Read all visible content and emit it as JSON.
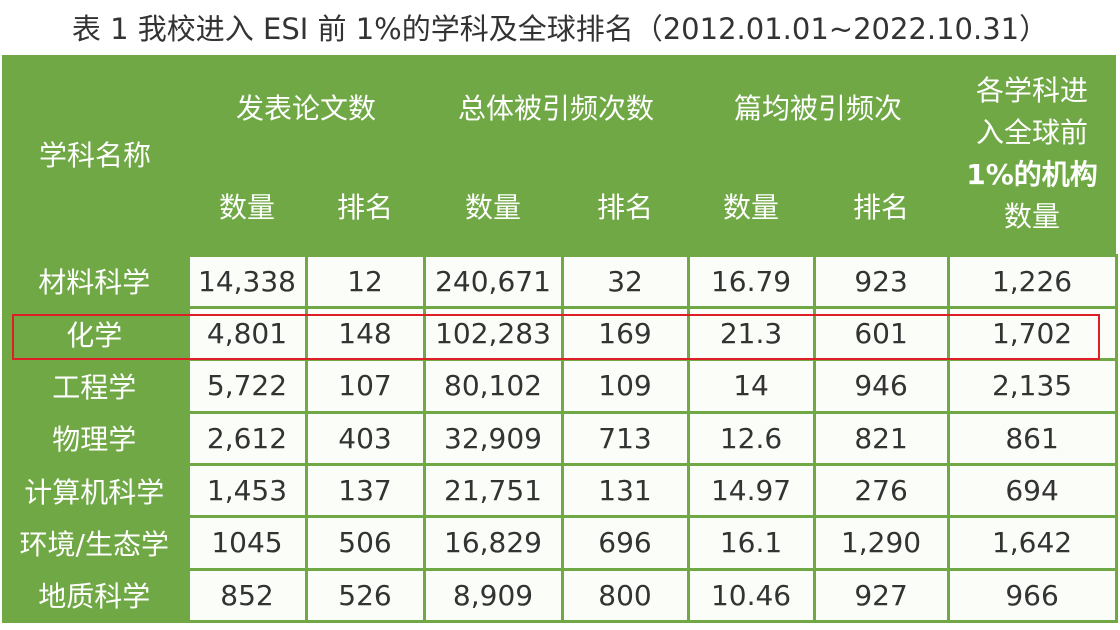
{
  "caption": "表 1  我校进入 ESI 前 1%的学科及全球排名（2012.01.01~2022.10.31）",
  "headers": {
    "subject": "学科名称",
    "papers": "发表论文数",
    "citations": "总体被引频次数",
    "avg_citations": "篇均被引频次",
    "institutions": "各学科进入全球前1%的机构数量",
    "institutions_lines": [
      "各学科进",
      "入全球前",
      "1%的机构",
      "数量"
    ],
    "count": "数量",
    "rank": "排名"
  },
  "rows": [
    {
      "subject": "材料科学",
      "papers_count": "14,338",
      "papers_rank": "12",
      "cit_count": "240,671",
      "cit_rank": "32",
      "avg_count": "16.79",
      "avg_rank": "923",
      "institutions": "1,226"
    },
    {
      "subject": "化学",
      "papers_count": "4,801",
      "papers_rank": "148",
      "cit_count": "102,283",
      "cit_rank": "169",
      "avg_count": "21.3",
      "avg_rank": "601",
      "institutions": "1,702"
    },
    {
      "subject": "工程学",
      "papers_count": "5,722",
      "papers_rank": "107",
      "cit_count": "80,102",
      "cit_rank": "109",
      "avg_count": "14",
      "avg_rank": "946",
      "institutions": "2,135"
    },
    {
      "subject": "物理学",
      "papers_count": "2,612",
      "papers_rank": "403",
      "cit_count": "32,909",
      "cit_rank": "713",
      "avg_count": "12.6",
      "avg_rank": "821",
      "institutions": "861"
    },
    {
      "subject": "计算机科学",
      "papers_count": "1,453",
      "papers_rank": "137",
      "cit_count": "21,751",
      "cit_rank": "131",
      "avg_count": "14.97",
      "avg_rank": "276",
      "institutions": "694"
    },
    {
      "subject": "环境/生态学",
      "papers_count": "1045",
      "papers_rank": "506",
      "cit_count": "16,829",
      "cit_rank": "696",
      "avg_count": "16.1",
      "avg_rank": "1,290",
      "institutions": "1,642"
    },
    {
      "subject": "地质科学",
      "papers_count": "852",
      "papers_rank": "526",
      "cit_count": "8,909",
      "cit_rank": "800",
      "avg_count": "10.46",
      "avg_rank": "927",
      "institutions": "966"
    }
  ],
  "highlighted_row": "化学",
  "colors": {
    "header_green": "#6fa844",
    "highlight_red": "#dd1f27",
    "text": "#333333"
  }
}
